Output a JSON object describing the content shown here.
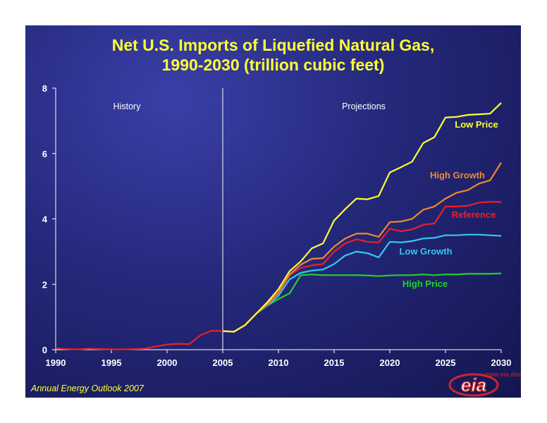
{
  "title_line1": "Net U.S. Imports of Liquefied Natural Gas,",
  "title_line2": "1990-2030 (trillion cubic feet)",
  "footer_note": "Annual Energy Outlook 2007",
  "logo_text": "eia",
  "logo_site": "www.eia.doe.gov",
  "colors": {
    "title": "#ffff33",
    "axis": "#ffffff",
    "low_price": "#ffff33",
    "high_growth": "#f08a2c",
    "reference": "#e8202a",
    "low_growth": "#33c8f0",
    "high_price": "#22d22a",
    "history": "#e8202a"
  },
  "chart_data": {
    "type": "line",
    "title": "Net U.S. Imports of Liquefied Natural Gas, 1990-2030 (trillion cubic feet)",
    "xlabel": "",
    "ylabel": "",
    "xlim": [
      1990,
      2030
    ],
    "ylim": [
      0,
      8
    ],
    "x_ticks": [
      "1990",
      "1995",
      "2000",
      "2005",
      "2010",
      "2015",
      "2020",
      "2025",
      "2030"
    ],
    "y_ticks": [
      "0",
      "2",
      "4",
      "6",
      "8"
    ],
    "grid": false,
    "annotations": [
      "History",
      "Projections"
    ],
    "divider_year": 2005,
    "history": {
      "x": [
        1990,
        1991,
        1992,
        1993,
        1994,
        1995,
        1996,
        1997,
        1998,
        1999,
        2000,
        2001,
        2002,
        2003,
        2004,
        2005
      ],
      "values": [
        0.04,
        0.02,
        0.01,
        0.03,
        0.02,
        0.01,
        0.01,
        0.02,
        0.03,
        0.1,
        0.16,
        0.18,
        0.17,
        0.44,
        0.58,
        0.57
      ]
    },
    "series": [
      {
        "name": "Low Price",
        "x": [
          2005,
          2006,
          2007,
          2008,
          2009,
          2010,
          2011,
          2012,
          2013,
          2014,
          2015,
          2016,
          2017,
          2018,
          2019,
          2020,
          2021,
          2022,
          2023,
          2024,
          2025,
          2026,
          2027,
          2028,
          2029,
          2030
        ],
        "values": [
          0.57,
          0.55,
          0.75,
          1.1,
          1.45,
          1.85,
          2.4,
          2.7,
          3.1,
          3.25,
          3.95,
          4.3,
          4.62,
          4.6,
          4.7,
          5.42,
          5.58,
          5.75,
          6.32,
          6.5,
          7.1,
          7.12,
          7.18,
          7.2,
          7.22,
          7.55
        ]
      },
      {
        "name": "High Growth",
        "x": [
          2005,
          2006,
          2007,
          2008,
          2009,
          2010,
          2011,
          2012,
          2013,
          2014,
          2015,
          2016,
          2017,
          2018,
          2019,
          2020,
          2021,
          2022,
          2023,
          2024,
          2025,
          2026,
          2027,
          2028,
          2029,
          2030
        ],
        "values": [
          0.57,
          0.55,
          0.75,
          1.1,
          1.4,
          1.75,
          2.3,
          2.6,
          2.78,
          2.8,
          3.15,
          3.4,
          3.55,
          3.55,
          3.45,
          3.9,
          3.92,
          4.0,
          4.28,
          4.38,
          4.62,
          4.8,
          4.88,
          5.08,
          5.18,
          5.72
        ]
      },
      {
        "name": "Reference",
        "x": [
          2005,
          2006,
          2007,
          2008,
          2009,
          2010,
          2011,
          2012,
          2013,
          2014,
          2015,
          2016,
          2017,
          2018,
          2019,
          2020,
          2021,
          2022,
          2023,
          2024,
          2025,
          2026,
          2027,
          2028,
          2029,
          2030
        ],
        "values": [
          0.57,
          0.55,
          0.75,
          1.1,
          1.38,
          1.72,
          2.28,
          2.5,
          2.58,
          2.62,
          3.0,
          3.25,
          3.38,
          3.3,
          3.28,
          3.7,
          3.62,
          3.68,
          3.82,
          3.86,
          4.38,
          4.38,
          4.4,
          4.5,
          4.52,
          4.52
        ]
      },
      {
        "name": "Low Growth",
        "x": [
          2005,
          2006,
          2007,
          2008,
          2009,
          2010,
          2011,
          2012,
          2013,
          2014,
          2015,
          2016,
          2017,
          2018,
          2019,
          2020,
          2021,
          2022,
          2023,
          2024,
          2025,
          2026,
          2027,
          2028,
          2029,
          2030
        ],
        "values": [
          0.57,
          0.55,
          0.75,
          1.1,
          1.35,
          1.65,
          2.15,
          2.35,
          2.42,
          2.45,
          2.62,
          2.88,
          3.0,
          2.95,
          2.82,
          3.3,
          3.28,
          3.32,
          3.4,
          3.42,
          3.5,
          3.5,
          3.52,
          3.52,
          3.5,
          3.48
        ]
      },
      {
        "name": "High Price",
        "x": [
          2005,
          2006,
          2007,
          2008,
          2009,
          2010,
          2011,
          2012,
          2013,
          2014,
          2015,
          2016,
          2017,
          2018,
          2019,
          2020,
          2021,
          2022,
          2023,
          2024,
          2025,
          2026,
          2027,
          2028,
          2029,
          2030
        ],
        "values": [
          0.57,
          0.55,
          0.75,
          1.1,
          1.35,
          1.55,
          1.72,
          2.28,
          2.3,
          2.28,
          2.28,
          2.28,
          2.28,
          2.27,
          2.25,
          2.27,
          2.28,
          2.28,
          2.3,
          2.28,
          2.3,
          2.3,
          2.32,
          2.32,
          2.32,
          2.33
        ]
      }
    ]
  }
}
